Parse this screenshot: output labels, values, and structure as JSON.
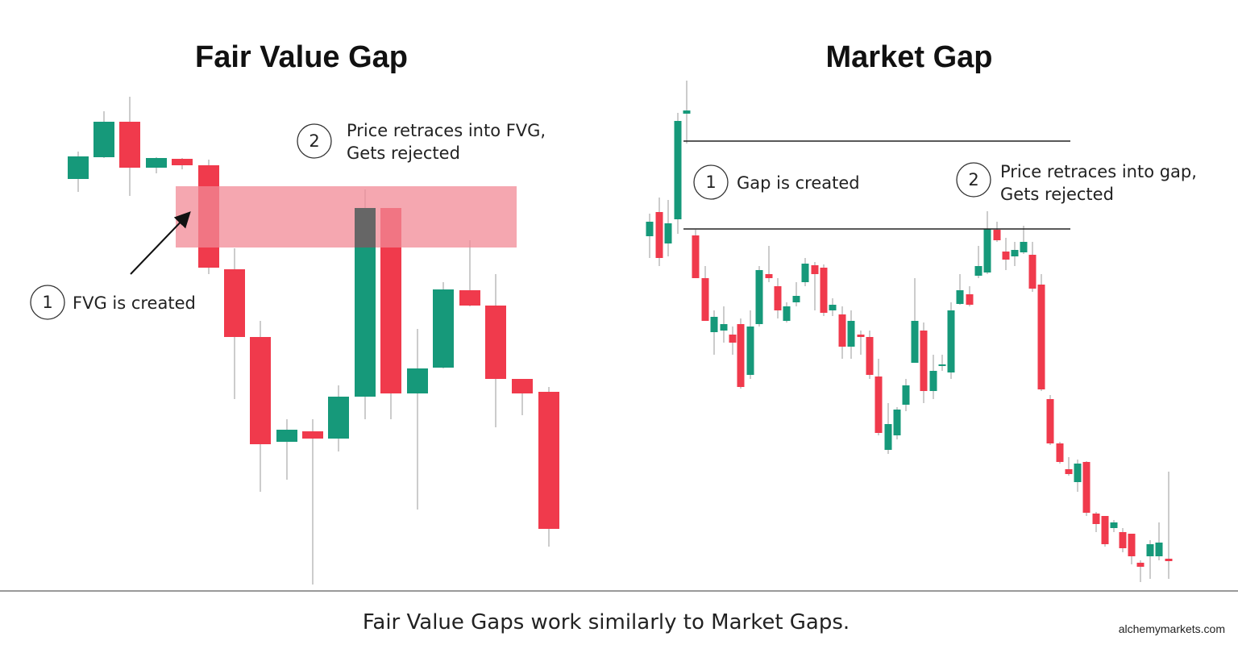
{
  "left_panel": {
    "title": "Fair Value Gap",
    "step_1": {
      "number": "1",
      "text": "FVG is created"
    },
    "step_2": {
      "number": "2",
      "lines": [
        "Price retraces into FVG,",
        "Gets rejected"
      ]
    }
  },
  "right_panel": {
    "title": "Market Gap",
    "step_1": {
      "number": "1",
      "text": "Gap is created"
    },
    "step_2": {
      "number": "2",
      "lines": [
        "Price retraces into gap,",
        "Gets rejected"
      ]
    }
  },
  "caption": "Fair Value Gaps work similarly to Market Gaps.",
  "source": "alchemymarkets.com"
}
